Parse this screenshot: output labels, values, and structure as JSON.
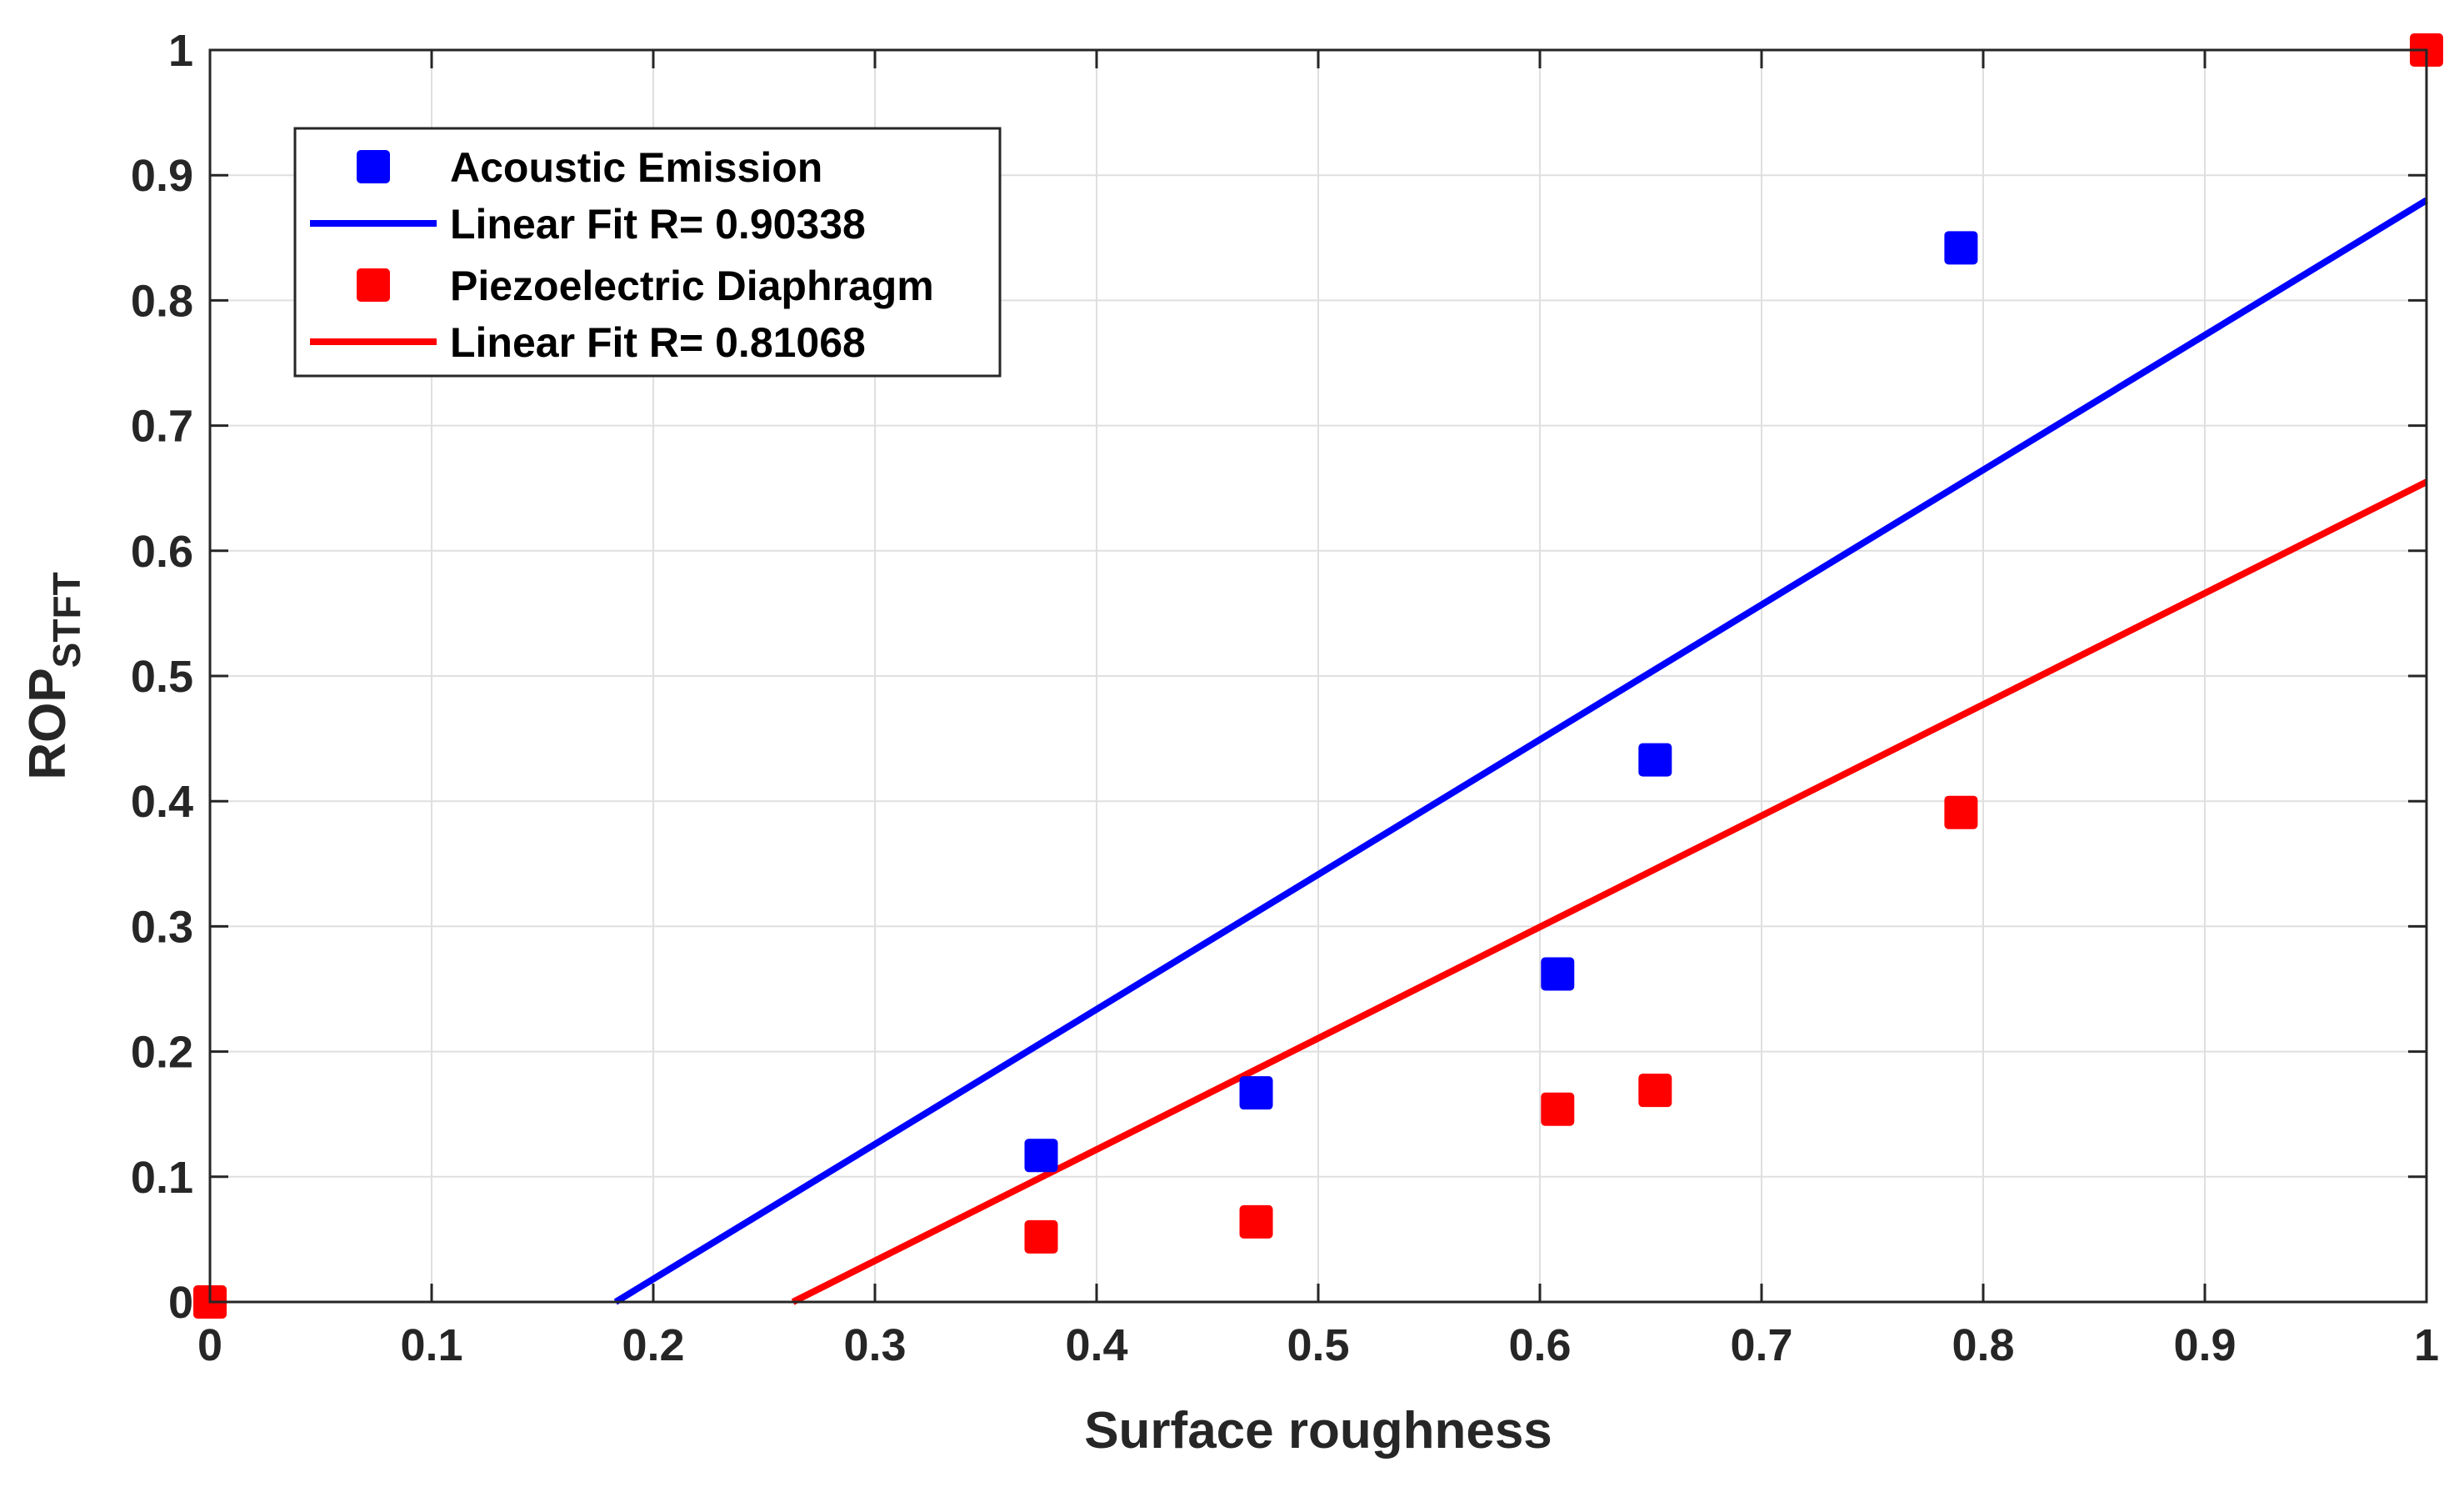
{
  "chart_data": {
    "type": "scatter",
    "title": "",
    "xlabel": "Surface roughness",
    "ylabel": "ROP",
    "ylabel_subscript": "STFT",
    "xlim": [
      0,
      1
    ],
    "ylim": [
      0,
      1
    ],
    "grid": true,
    "x_ticks": [
      "0",
      "0.1",
      "0.2",
      "0.3",
      "0.4",
      "0.5",
      "0.6",
      "0.7",
      "0.8",
      "0.9",
      "1"
    ],
    "y_ticks": [
      "0",
      "0.1",
      "0.2",
      "0.3",
      "0.4",
      "0.5",
      "0.6",
      "0.7",
      "0.8",
      "0.9",
      "1"
    ],
    "legend_position": "top-left",
    "series": [
      {
        "name": "Acoustic Emission",
        "kind": "markers",
        "color": "#0000ff",
        "x": [
          0.375,
          0.472,
          0.608,
          0.652,
          0.79
        ],
        "y": [
          0.117,
          0.167,
          0.262,
          0.433,
          0.842
        ]
      },
      {
        "name": "Linear Fit R= 0.90338",
        "kind": "line",
        "color": "#0000ff",
        "x": [
          0.183,
          1.0
        ],
        "y": [
          0.0,
          0.88
        ]
      },
      {
        "name": "Piezoelectric Diaphragm",
        "kind": "markers",
        "color": "#ff0000",
        "x": [
          0.0,
          0.375,
          0.472,
          0.608,
          0.652,
          0.79,
          1.0
        ],
        "y": [
          0.0,
          0.052,
          0.064,
          0.154,
          0.169,
          0.391,
          1.0
        ]
      },
      {
        "name": "Linear Fit R= 0.81068",
        "kind": "line",
        "color": "#ff0000",
        "x": [
          0.263,
          1.0
        ],
        "y": [
          0.0,
          0.655
        ]
      }
    ]
  }
}
